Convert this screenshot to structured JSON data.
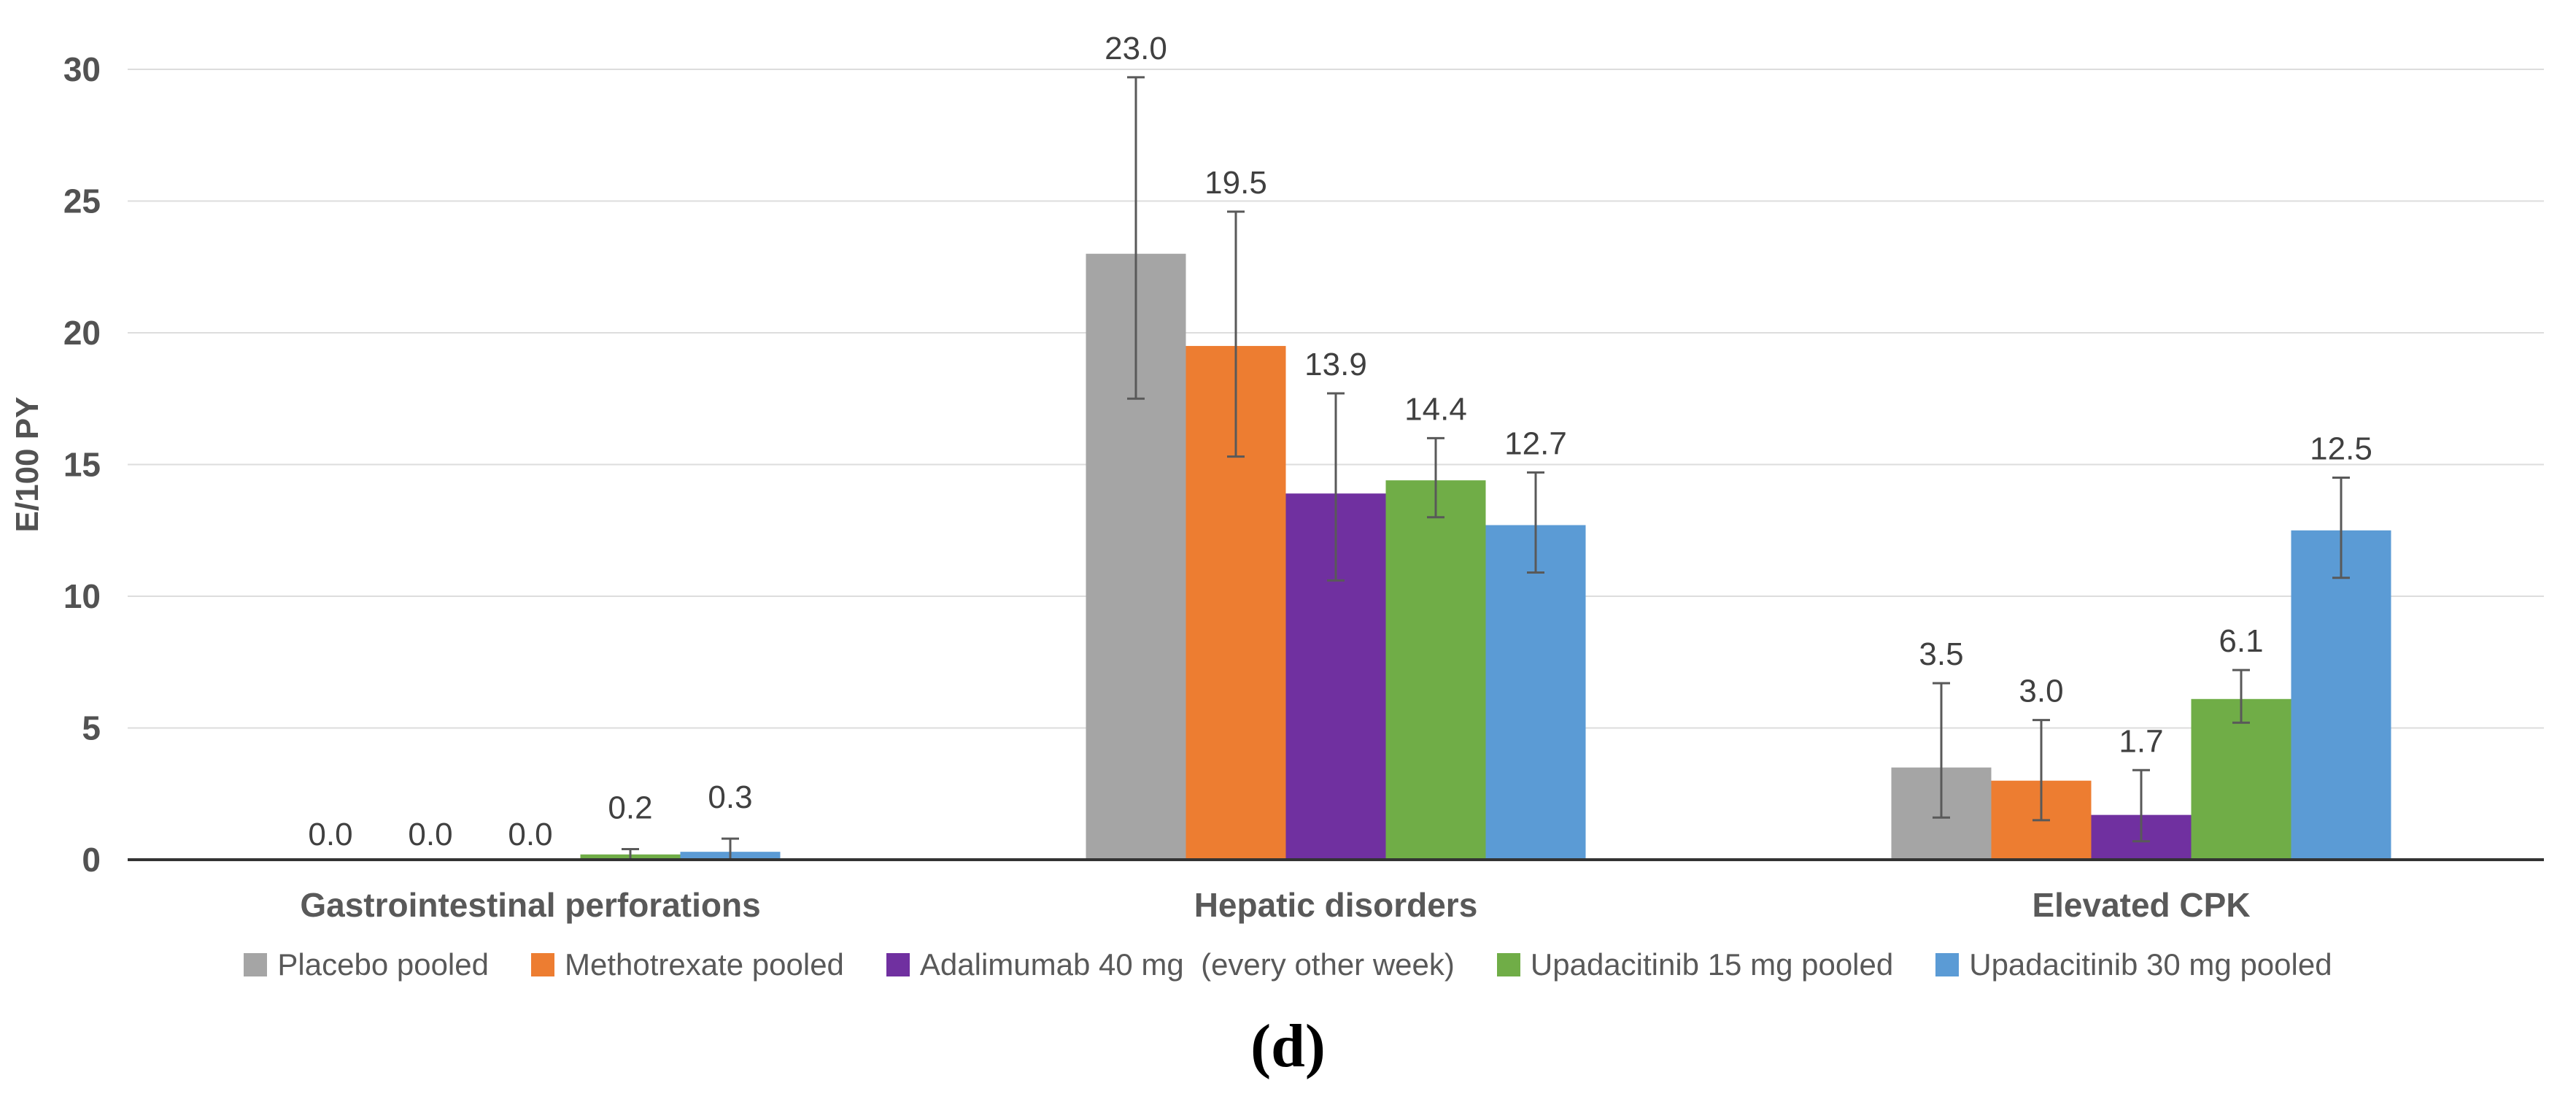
{
  "figure": {
    "caption": "(d)"
  },
  "chart_data": {
    "type": "bar",
    "title": "",
    "xlabel": "",
    "ylabel": "E/100 PY",
    "ylim": [
      0,
      30
    ],
    "yticks": [
      0,
      5,
      10,
      15,
      20,
      25,
      30
    ],
    "grid": true,
    "legend_position": "bottom",
    "categories": [
      "Gastrointestinal perforations",
      "Hepatic disorders",
      "Elevated CPK"
    ],
    "series": [
      {
        "name": "Placebo pooled",
        "color": "#A5A5A5",
        "values": [
          0.0,
          23.0,
          3.5
        ],
        "labels": [
          "0.0",
          "23.0",
          "3.5"
        ],
        "error_low": [
          null,
          17.5,
          1.6
        ],
        "error_high": [
          null,
          29.7,
          6.7
        ]
      },
      {
        "name": "Methotrexate pooled",
        "color": "#ED7D31",
        "values": [
          0.0,
          19.5,
          3.0
        ],
        "labels": [
          "0.0",
          "19.5",
          "3.0"
        ],
        "error_low": [
          null,
          15.3,
          1.5
        ],
        "error_high": [
          null,
          24.6,
          5.3
        ]
      },
      {
        "name": "Adalimumab 40 mg  (every other week)",
        "color": "#7030A0",
        "values": [
          0.0,
          13.9,
          1.7
        ],
        "labels": [
          "0.0",
          "13.9",
          "1.7"
        ],
        "error_low": [
          null,
          10.6,
          0.7
        ],
        "error_high": [
          null,
          17.7,
          3.4
        ]
      },
      {
        "name": "Upadacitinib 15 mg pooled",
        "color": "#70AD47",
        "values": [
          0.2,
          14.4,
          6.1
        ],
        "labels": [
          "0.2",
          "14.4",
          "6.1"
        ],
        "error_low": [
          0.0,
          13.0,
          5.2
        ],
        "error_high": [
          0.4,
          16.0,
          7.2
        ]
      },
      {
        "name": "Upadacitinib 30 mg pooled",
        "color": "#5B9BD5",
        "values": [
          0.3,
          12.7,
          12.5
        ],
        "labels": [
          "0.3",
          "12.7",
          "12.5"
        ],
        "error_low": [
          0.0,
          10.9,
          10.7
        ],
        "error_high": [
          0.8,
          14.7,
          14.5
        ]
      }
    ],
    "style": {
      "grid_color": "#DDDDDD",
      "baseline_color": "#333333",
      "error_color": "#595959",
      "tick_label_color": "#525252",
      "value_label_color": "#404040",
      "category_label_color": "#595959",
      "axis_title_color": "#525252"
    }
  }
}
